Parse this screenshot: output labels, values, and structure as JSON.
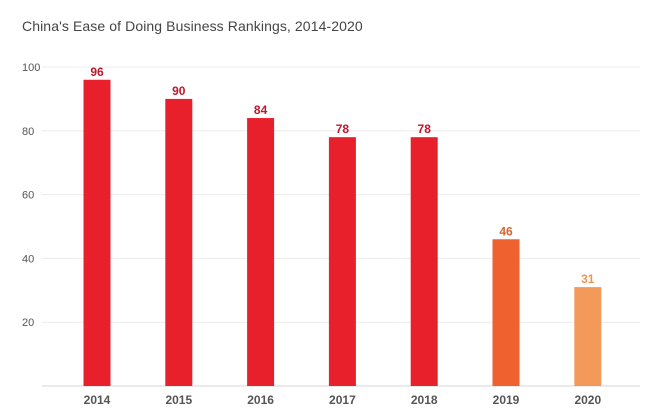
{
  "chart_data": {
    "type": "bar",
    "title": "China's Ease of Doing Business Rankings, 2014-2020",
    "categories": [
      "2014",
      "2015",
      "2016",
      "2017",
      "2018",
      "2019",
      "2020"
    ],
    "values": [
      96,
      90,
      84,
      78,
      78,
      46,
      31
    ],
    "bar_colors": [
      "#e8202b",
      "#e8202b",
      "#e8202b",
      "#e8202b",
      "#e8202b",
      "#ef6230",
      "#f39a5a"
    ],
    "label_colors": [
      "#c0172a",
      "#c0172a",
      "#c0172a",
      "#c0172a",
      "#c0172a",
      "#d9632e",
      "#ec9652"
    ],
    "ylim": [
      0,
      100
    ],
    "yticks": [
      20,
      40,
      60,
      80,
      100
    ],
    "grid": true,
    "legend": "none",
    "xlabel": "",
    "ylabel": ""
  }
}
